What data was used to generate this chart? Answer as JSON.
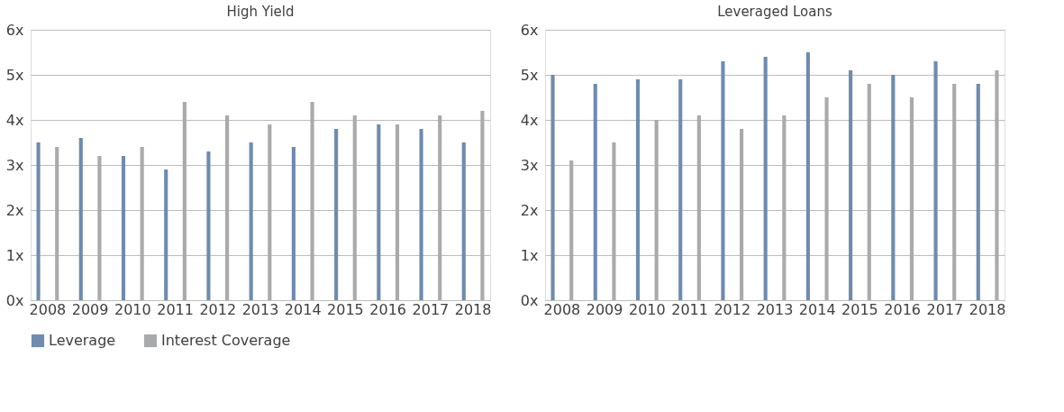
{
  "chart_data": [
    {
      "type": "bar",
      "title": "High Yield",
      "categories": [
        "2008",
        "2009",
        "2010",
        "2011",
        "2012",
        "2013",
        "2014",
        "2015",
        "2016",
        "2017",
        "2018"
      ],
      "series": [
        {
          "name": "Leverage",
          "color": "#6e8bb0",
          "values": [
            3.5,
            3.6,
            3.2,
            2.9,
            3.3,
            3.5,
            3.4,
            3.8,
            3.9,
            3.8,
            3.5
          ]
        },
        {
          "name": "Interest Coverage",
          "color": "#a9aaac",
          "values": [
            3.4,
            3.2,
            3.4,
            4.4,
            4.1,
            3.9,
            4.4,
            4.1,
            3.9,
            4.1,
            4.2
          ]
        }
      ],
      "ylim": [
        0,
        6
      ],
      "yticks": [
        {
          "value": 0,
          "label": "0x"
        },
        {
          "value": 1,
          "label": "1x"
        },
        {
          "value": 2,
          "label": "2x"
        },
        {
          "value": 3,
          "label": "3x"
        },
        {
          "value": 4,
          "label": "4x"
        },
        {
          "value": 5,
          "label": "5x"
        },
        {
          "value": 6,
          "label": "6x"
        }
      ],
      "grid": "y",
      "legend": "bottom"
    },
    {
      "type": "bar",
      "title": "Leveraged Loans",
      "categories": [
        "2008",
        "2009",
        "2010",
        "2011",
        "2012",
        "2013",
        "2014",
        "2015",
        "2016",
        "2017",
        "2018"
      ],
      "series": [
        {
          "name": "Leverage",
          "color": "#6e8bb0",
          "values": [
            5.0,
            4.8,
            4.9,
            4.9,
            5.3,
            5.4,
            5.5,
            5.1,
            5.0,
            5.3,
            4.8
          ]
        },
        {
          "name": "Interest Coverage",
          "color": "#a9aaac",
          "values": [
            3.1,
            3.5,
            4.0,
            4.1,
            3.8,
            4.1,
            4.5,
            4.8,
            4.5,
            4.8,
            5.1
          ]
        }
      ],
      "ylim": [
        0,
        6
      ],
      "yticks": [
        {
          "value": 0,
          "label": "0x"
        },
        {
          "value": 1,
          "label": "1x"
        },
        {
          "value": 2,
          "label": "2x"
        },
        {
          "value": 3,
          "label": "3x"
        },
        {
          "value": 4,
          "label": "4x"
        },
        {
          "value": 5,
          "label": "5x"
        },
        {
          "value": 6,
          "label": "6x"
        }
      ],
      "grid": "y",
      "legend": "bottom"
    }
  ]
}
